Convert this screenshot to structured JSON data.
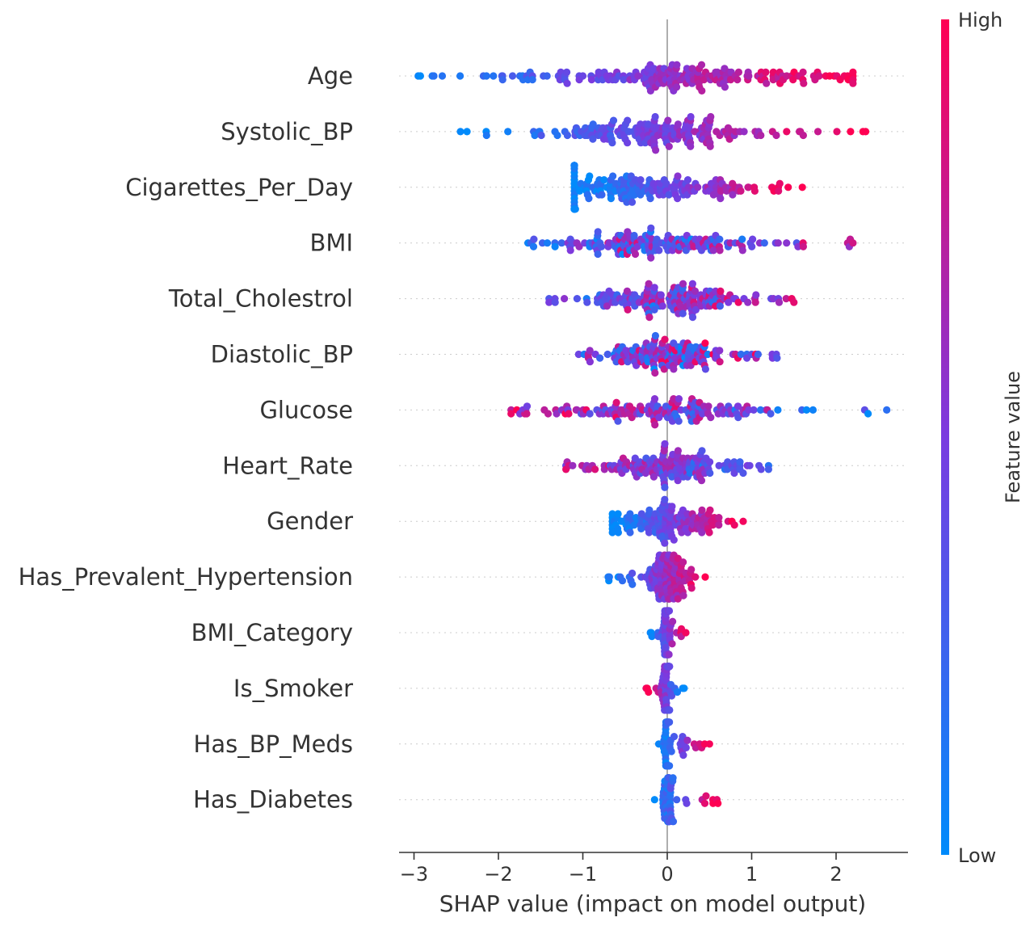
{
  "chart_data": {
    "type": "scatter",
    "subtype": "beeswarm",
    "xlabel": "SHAP value (impact on model output)",
    "xlim": [
      -3.1,
      2.85
    ],
    "xticks": [
      -3,
      -2,
      -1,
      0,
      1,
      2
    ],
    "xtick_labels": [
      "−3",
      "−2",
      "−1",
      "0",
      "1",
      "2"
    ],
    "grid": false,
    "colorbar": {
      "label": "Feature value",
      "high_label": "High",
      "low_label": "Low",
      "high_color": "#ff0052",
      "mid_color": "#7a3be0",
      "low_color": "#008bfb"
    },
    "features": [
      {
        "name": "Age",
        "range": [
          -2.95,
          2.2
        ],
        "center": 0.25,
        "spread": 0.18,
        "corr": 1,
        "count": 200
      },
      {
        "name": "Systolic_BP",
        "range": [
          -2.45,
          2.35
        ],
        "center": -0.15,
        "spread": 0.12,
        "corr": 1,
        "count": 180
      },
      {
        "name": "Cigarettes_Per_Day",
        "range": [
          -1.1,
          1.6
        ],
        "center": -0.35,
        "spread": 0.25,
        "corr": 1,
        "count": 180
      },
      {
        "name": "BMI",
        "range": [
          -1.65,
          2.2
        ],
        "center": -0.2,
        "spread": 0.15,
        "corr": 0.3,
        "count": 160
      },
      {
        "name": "Total_Cholestrol",
        "range": [
          -1.4,
          1.5
        ],
        "center": 0.0,
        "spread": 0.15,
        "corr": 0.4,
        "count": 160
      },
      {
        "name": "Diastolic_BP",
        "range": [
          -1.05,
          1.3
        ],
        "center": 0.0,
        "spread": 0.15,
        "corr": 0.2,
        "count": 150
      },
      {
        "name": "Glucose",
        "range": [
          -1.85,
          2.6
        ],
        "center": 0.0,
        "spread": 0.15,
        "corr": -0.4,
        "count": 150
      },
      {
        "name": "Heart_Rate",
        "range": [
          -1.2,
          1.2
        ],
        "center": 0.0,
        "spread": 0.15,
        "corr": -0.5,
        "count": 150
      },
      {
        "name": "Gender",
        "range": [
          -0.65,
          0.9
        ],
        "center": 0.0,
        "spread": 0.22,
        "corr": 1,
        "count": 140
      },
      {
        "name": "Has_Prevalent_Hypertension",
        "range": [
          -0.7,
          0.45
        ],
        "center": 0.0,
        "spread": 0.12,
        "corr": 1,
        "count": 120
      },
      {
        "name": "BMI_Category",
        "range": [
          -0.2,
          0.22
        ],
        "center": 0.0,
        "spread": 0.06,
        "corr": 1,
        "count": 70
      },
      {
        "name": "Is_Smoker",
        "range": [
          -0.25,
          0.2
        ],
        "center": 0.0,
        "spread": 0.06,
        "corr": -1,
        "count": 70
      },
      {
        "name": "Has_BP_Meds",
        "range": [
          -0.1,
          0.5
        ],
        "center": 0.0,
        "spread": 0.03,
        "corr": 1,
        "count": 70
      },
      {
        "name": "Has_Diabetes",
        "range": [
          -0.15,
          0.6
        ],
        "center": 0.0,
        "spread": 0.03,
        "corr": 1,
        "count": 60
      }
    ]
  }
}
